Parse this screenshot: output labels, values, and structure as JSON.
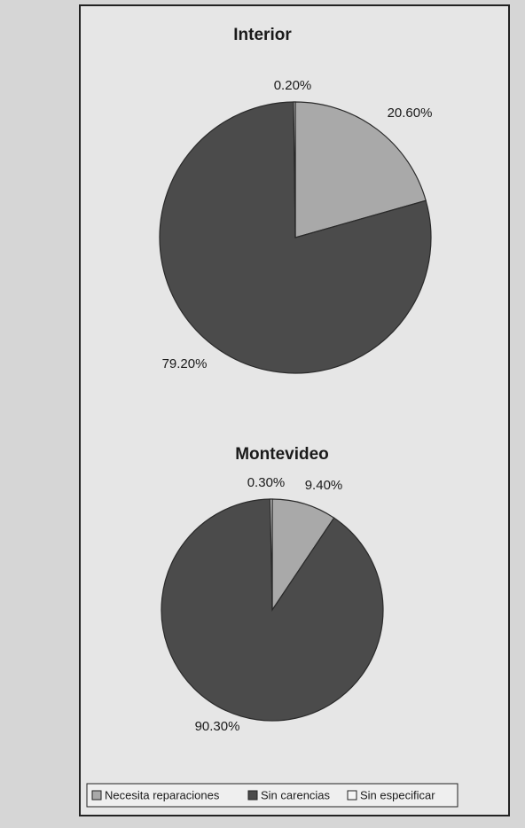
{
  "legend": {
    "labels": [
      "Necesita reparaciones",
      "Sin carencias",
      "Sin especificar"
    ],
    "colors": [
      "#a9a9a9",
      "#4b4b4b",
      "#f5f5f5"
    ]
  },
  "chart_data": [
    {
      "type": "pie",
      "title": "Interior",
      "values": [
        20.6,
        79.2,
        0.2
      ],
      "value_labels": [
        "20.60%",
        "79.20%",
        "0.20%"
      ]
    },
    {
      "type": "pie",
      "title": "Montevideo",
      "values": [
        9.4,
        90.3,
        0.3
      ],
      "value_labels": [
        "9.40%",
        "90.30%",
        "0.30%"
      ]
    }
  ]
}
